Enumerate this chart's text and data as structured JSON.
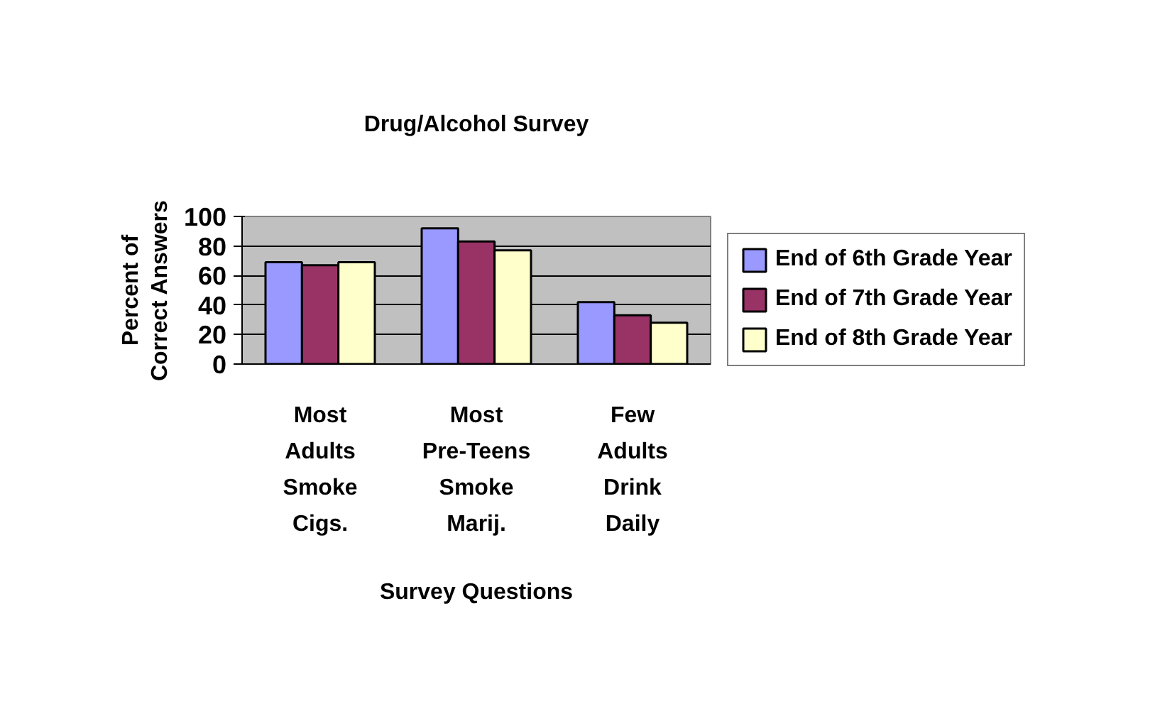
{
  "chart_data": {
    "type": "bar",
    "title": "Drug/Alcohol Survey",
    "xlabel": "Survey Questions",
    "ylabel": "Percent of Correct Answers",
    "categories": [
      "Most Adults Smoke Cigs.",
      "Most Pre-Teens Smoke Marij.",
      "Few Adults Drink Daily"
    ],
    "series": [
      {
        "name": "End of 6th Grade Year",
        "color": "#9999ff",
        "values": [
          69,
          92,
          42
        ]
      },
      {
        "name": "End of 7th Grade Year",
        "color": "#993366",
        "values": [
          67,
          83,
          33
        ]
      },
      {
        "name": "End of 8th Grade Year",
        "color": "#ffffcc",
        "values": [
          69,
          77,
          28
        ]
      }
    ],
    "ylim": [
      0,
      100
    ],
    "yticks": [
      0,
      20,
      40,
      60,
      80,
      100
    ],
    "grid": "y",
    "legend": "right"
  }
}
